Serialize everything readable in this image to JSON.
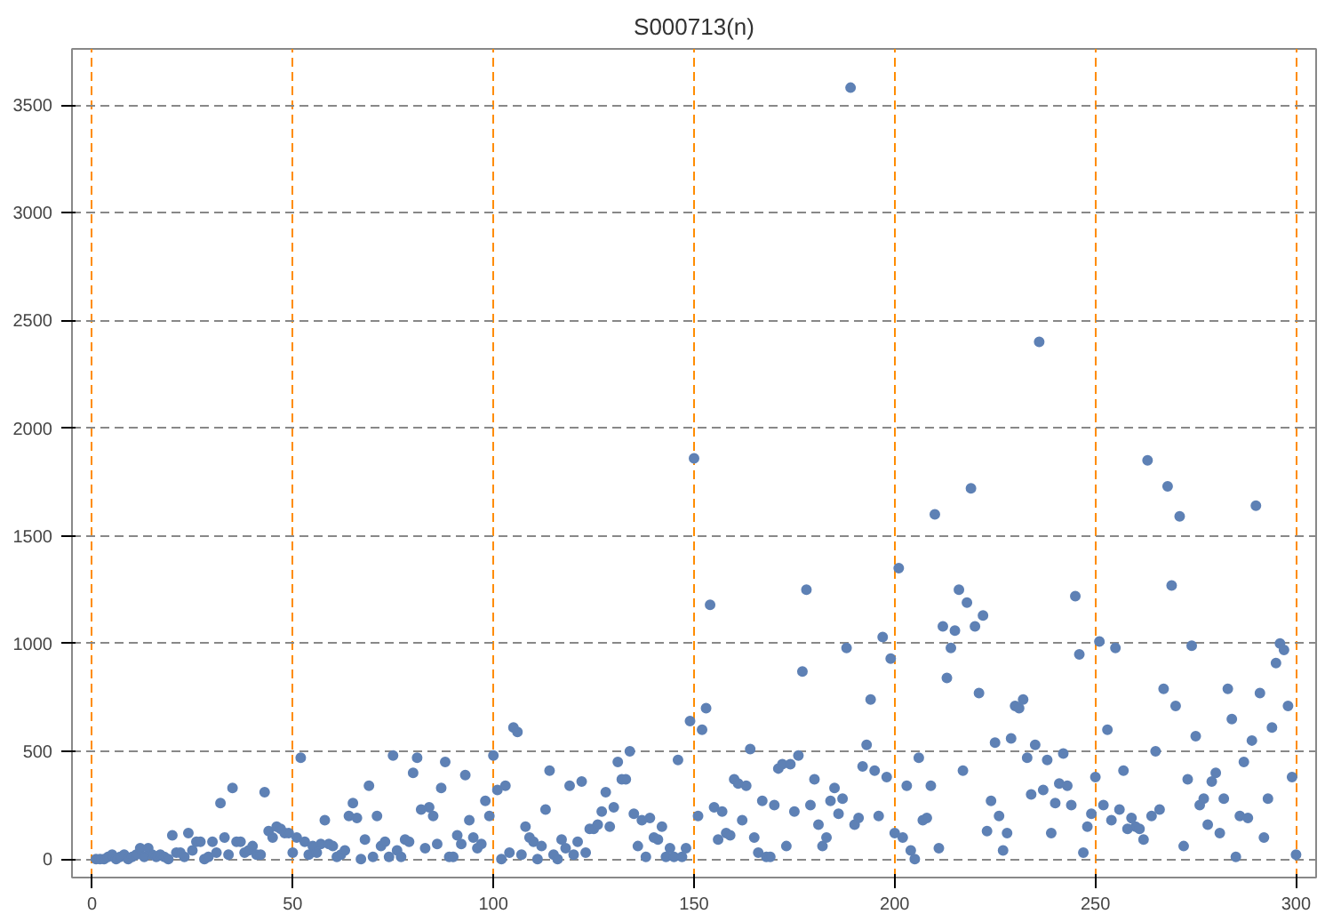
{
  "chart_data": {
    "type": "scatter",
    "title": "S000713(n)",
    "series": [
      {
        "color": "#5e81b5",
        "x": [
          1,
          2,
          3,
          4,
          5,
          6,
          7,
          8,
          9,
          10,
          11,
          12,
          13,
          14,
          15,
          16,
          17,
          18,
          19,
          20,
          21,
          22,
          23,
          24,
          25,
          26,
          27,
          28,
          29,
          30,
          31,
          32,
          33,
          34,
          35,
          36,
          37,
          38,
          39,
          40,
          41,
          42,
          43,
          44,
          45,
          46,
          47,
          48,
          49,
          50,
          51,
          52,
          53,
          54,
          55,
          56,
          57,
          58,
          59,
          60,
          61,
          62,
          63,
          64,
          65,
          66,
          67,
          68,
          69,
          70,
          71,
          72,
          73,
          74,
          75,
          76,
          77,
          78,
          79,
          80,
          81,
          82,
          83,
          84,
          85,
          86,
          87,
          88,
          89,
          90,
          91,
          92,
          93,
          94,
          95,
          96,
          97,
          98,
          99,
          100,
          101,
          102,
          103,
          104,
          105,
          106,
          107,
          108,
          109,
          110,
          111,
          112,
          113,
          114,
          115,
          116,
          117,
          118,
          119,
          120,
          121,
          122,
          123,
          124,
          125,
          126,
          127,
          128,
          129,
          130,
          131,
          132,
          133,
          134,
          135,
          136,
          137,
          138,
          139,
          140,
          141,
          142,
          143,
          144,
          145,
          146,
          147,
          148,
          149,
          150,
          151,
          152,
          153,
          154,
          155,
          156,
          157,
          158,
          159,
          160,
          161,
          162,
          163,
          164,
          165,
          166,
          167,
          168,
          169,
          170,
          171,
          172,
          173,
          174,
          175,
          176,
          177,
          178,
          179,
          180,
          181,
          182,
          183,
          184,
          185,
          186,
          187,
          188,
          189,
          190,
          191,
          192,
          193,
          194,
          195,
          196,
          197,
          198,
          199,
          200,
          201,
          202,
          203,
          204,
          205,
          206,
          207,
          208,
          209,
          210,
          211,
          212,
          213,
          214,
          215,
          216,
          217,
          218,
          219,
          220,
          221,
          222,
          223,
          224,
          225,
          226,
          227,
          228,
          229,
          230,
          231,
          232,
          233,
          234,
          235,
          236,
          237,
          238,
          239,
          240,
          241,
          242,
          243,
          244,
          245,
          246,
          247,
          248,
          249,
          250,
          251,
          252,
          253,
          254,
          255,
          256,
          257,
          258,
          259,
          260,
          261,
          262,
          263,
          264,
          265,
          266,
          267,
          268,
          269,
          270,
          271,
          272,
          273,
          274,
          275,
          276,
          277,
          278,
          279,
          280,
          281,
          282,
          283,
          284,
          285,
          286,
          287,
          288,
          289,
          290,
          291,
          292,
          293,
          294,
          295,
          296,
          297,
          298,
          299,
          300
        ],
        "values": [
          0,
          0,
          0,
          10,
          20,
          0,
          10,
          20,
          0,
          10,
          20,
          50,
          10,
          50,
          20,
          10,
          20,
          10,
          0,
          110,
          30,
          30,
          10,
          120,
          40,
          80,
          80,
          0,
          10,
          80,
          30,
          260,
          100,
          20,
          330,
          80,
          80,
          30,
          40,
          60,
          20,
          20,
          310,
          130,
          100,
          150,
          140,
          120,
          120,
          30,
          100,
          470,
          80,
          20,
          60,
          30,
          70,
          180,
          70,
          60,
          10,
          20,
          40,
          200,
          260,
          190,
          0,
          90,
          340,
          10,
          200,
          60,
          80,
          10,
          480,
          40,
          10,
          90,
          80,
          400,
          470,
          230,
          50,
          240,
          200,
          70,
          330,
          450,
          10,
          10,
          110,
          70,
          390,
          180,
          100,
          50,
          70,
          270,
          200,
          480,
          320,
          0,
          340,
          30,
          610,
          590,
          20,
          150,
          100,
          80,
          0,
          60,
          230,
          410,
          20,
          0,
          90,
          50,
          340,
          20,
          80,
          360,
          30,
          140,
          140,
          160,
          220,
          310,
          150,
          240,
          450,
          370,
          370,
          500,
          210,
          60,
          180,
          10,
          190,
          100,
          90,
          150,
          10,
          50,
          10,
          460,
          10,
          50,
          640,
          1860,
          200,
          600,
          700,
          1180,
          240,
          90,
          220,
          120,
          110,
          370,
          350,
          180,
          340,
          510,
          100,
          30,
          270,
          10,
          10,
          250,
          420,
          440,
          60,
          440,
          220,
          480,
          870,
          1250,
          250,
          370,
          160,
          60,
          100,
          270,
          330,
          210,
          280,
          980,
          3580,
          160,
          190,
          430,
          530,
          740,
          410,
          200,
          1030,
          380,
          930,
          120,
          1350,
          100,
          340,
          40,
          0,
          470,
          180,
          190,
          340,
          1600,
          50,
          1080,
          840,
          980,
          1060,
          1250,
          410,
          1190,
          1720,
          1080,
          770,
          1130,
          130,
          270,
          540,
          200,
          40,
          120,
          560,
          710,
          700,
          740,
          470,
          300,
          530,
          2400,
          320,
          460,
          120,
          260,
          350,
          490,
          340,
          250,
          1220,
          950,
          30,
          150,
          210,
          380,
          1010,
          250,
          600,
          180,
          980,
          230,
          410,
          140,
          190,
          150,
          140,
          90,
          1850,
          200,
          500,
          230,
          790,
          1730,
          1270,
          710,
          1590,
          60,
          370,
          990,
          570,
          250,
          280,
          160,
          360,
          400,
          120,
          280,
          790,
          650,
          10,
          200,
          450,
          190,
          550,
          1640,
          770,
          100,
          280,
          610,
          910,
          1000,
          970,
          710,
          380,
          20
        ]
      }
    ],
    "xlim": [
      -5,
      305
    ],
    "ylim": [
      -86,
      3760
    ],
    "xticks": [
      0,
      50,
      100,
      150,
      200,
      250,
      300
    ],
    "yticks": [
      0,
      500,
      1000,
      1500,
      2000,
      2500,
      3000,
      3500
    ],
    "grid": true,
    "marker": "circle"
  }
}
